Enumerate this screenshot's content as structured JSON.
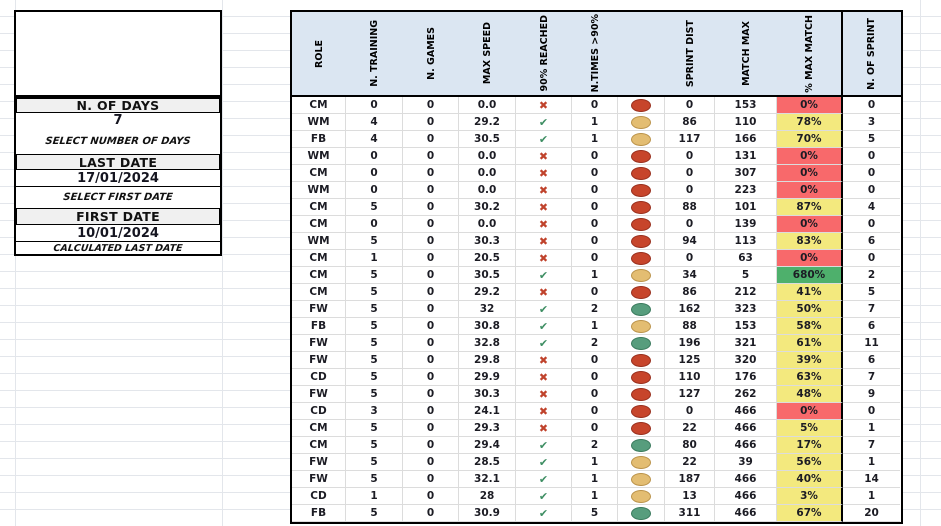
{
  "left_panel": {
    "n_of_days_label": "N. OF DAYS",
    "n_of_days_value": "7",
    "n_of_days_hint": "SELECT NUMBER OF DAYS",
    "last_date_label": "LAST DATE",
    "last_date_value": "17/01/2024",
    "last_date_hint": "SELECT FIRST DATE",
    "first_date_label": "FIRST DATE",
    "first_date_value": "10/01/2024",
    "first_date_hint": "CALCULATED LAST DATE"
  },
  "table": {
    "columns": [
      "ROLE",
      "N. TRAINING",
      "N. GAMES",
      "MAX SPEED",
      "90% REACHED",
      "N.TIMES >90%",
      "",
      "SPRINT DIST",
      "MATCH MAX",
      "% MAX MATCH",
      "N. OF SPRINT"
    ],
    "glyphs": {
      "yes": "✔",
      "no": "✖"
    },
    "rows": [
      {
        "role": "CM",
        "n_training": "0",
        "n_games": "0",
        "max_speed": "0.0",
        "reached_90": "no",
        "n_times_90": "0",
        "status": "red",
        "sprint_dist": "0",
        "match_max": "153",
        "pct": "0%",
        "pct_level": "red",
        "n_of_sprint": "0"
      },
      {
        "role": "WM",
        "n_training": "4",
        "n_games": "0",
        "max_speed": "29.2",
        "reached_90": "yes",
        "n_times_90": "1",
        "status": "yellow",
        "sprint_dist": "86",
        "match_max": "110",
        "pct": "78%",
        "pct_level": "yellow",
        "n_of_sprint": "3"
      },
      {
        "role": "FB",
        "n_training": "4",
        "n_games": "0",
        "max_speed": "30.5",
        "reached_90": "yes",
        "n_times_90": "1",
        "status": "yellow",
        "sprint_dist": "117",
        "match_max": "166",
        "pct": "70%",
        "pct_level": "yellow",
        "n_of_sprint": "5"
      },
      {
        "role": "WM",
        "n_training": "0",
        "n_games": "0",
        "max_speed": "0.0",
        "reached_90": "no",
        "n_times_90": "0",
        "status": "red",
        "sprint_dist": "0",
        "match_max": "131",
        "pct": "0%",
        "pct_level": "red",
        "n_of_sprint": "0"
      },
      {
        "role": "CM",
        "n_training": "0",
        "n_games": "0",
        "max_speed": "0.0",
        "reached_90": "no",
        "n_times_90": "0",
        "status": "red",
        "sprint_dist": "0",
        "match_max": "307",
        "pct": "0%",
        "pct_level": "red",
        "n_of_sprint": "0"
      },
      {
        "role": "WM",
        "n_training": "0",
        "n_games": "0",
        "max_speed": "0.0",
        "reached_90": "no",
        "n_times_90": "0",
        "status": "red",
        "sprint_dist": "0",
        "match_max": "223",
        "pct": "0%",
        "pct_level": "red",
        "n_of_sprint": "0"
      },
      {
        "role": "CM",
        "n_training": "5",
        "n_games": "0",
        "max_speed": "30.2",
        "reached_90": "no",
        "n_times_90": "0",
        "status": "red",
        "sprint_dist": "88",
        "match_max": "101",
        "pct": "87%",
        "pct_level": "yellow",
        "n_of_sprint": "4"
      },
      {
        "role": "CM",
        "n_training": "0",
        "n_games": "0",
        "max_speed": "0.0",
        "reached_90": "no",
        "n_times_90": "0",
        "status": "red",
        "sprint_dist": "0",
        "match_max": "139",
        "pct": "0%",
        "pct_level": "red",
        "n_of_sprint": "0"
      },
      {
        "role": "WM",
        "n_training": "5",
        "n_games": "0",
        "max_speed": "30.3",
        "reached_90": "no",
        "n_times_90": "0",
        "status": "red",
        "sprint_dist": "94",
        "match_max": "113",
        "pct": "83%",
        "pct_level": "yellow",
        "n_of_sprint": "6"
      },
      {
        "role": "CM",
        "n_training": "1",
        "n_games": "0",
        "max_speed": "20.5",
        "reached_90": "no",
        "n_times_90": "0",
        "status": "red",
        "sprint_dist": "0",
        "match_max": "63",
        "pct": "0%",
        "pct_level": "red",
        "n_of_sprint": "0"
      },
      {
        "role": "CM",
        "n_training": "5",
        "n_games": "0",
        "max_speed": "30.5",
        "reached_90": "yes",
        "n_times_90": "1",
        "status": "yellow",
        "sprint_dist": "34",
        "match_max": "5",
        "pct": "680%",
        "pct_level": "green",
        "n_of_sprint": "2"
      },
      {
        "role": "CM",
        "n_training": "5",
        "n_games": "0",
        "max_speed": "29.2",
        "reached_90": "no",
        "n_times_90": "0",
        "status": "red",
        "sprint_dist": "86",
        "match_max": "212",
        "pct": "41%",
        "pct_level": "yellow",
        "n_of_sprint": "5"
      },
      {
        "role": "FW",
        "n_training": "5",
        "n_games": "0",
        "max_speed": "32",
        "reached_90": "yes",
        "n_times_90": "2",
        "status": "green",
        "sprint_dist": "162",
        "match_max": "323",
        "pct": "50%",
        "pct_level": "yellow",
        "n_of_sprint": "7"
      },
      {
        "role": "FB",
        "n_training": "5",
        "n_games": "0",
        "max_speed": "30.8",
        "reached_90": "yes",
        "n_times_90": "1",
        "status": "yellow",
        "sprint_dist": "88",
        "match_max": "153",
        "pct": "58%",
        "pct_level": "yellow",
        "n_of_sprint": "6"
      },
      {
        "role": "FW",
        "n_training": "5",
        "n_games": "0",
        "max_speed": "32.8",
        "reached_90": "yes",
        "n_times_90": "2",
        "status": "green",
        "sprint_dist": "196",
        "match_max": "321",
        "pct": "61%",
        "pct_level": "yellow",
        "n_of_sprint": "11"
      },
      {
        "role": "FW",
        "n_training": "5",
        "n_games": "0",
        "max_speed": "29.8",
        "reached_90": "no",
        "n_times_90": "0",
        "status": "red",
        "sprint_dist": "125",
        "match_max": "320",
        "pct": "39%",
        "pct_level": "yellow",
        "n_of_sprint": "6"
      },
      {
        "role": "CD",
        "n_training": "5",
        "n_games": "0",
        "max_speed": "29.9",
        "reached_90": "no",
        "n_times_90": "0",
        "status": "red",
        "sprint_dist": "110",
        "match_max": "176",
        "pct": "63%",
        "pct_level": "yellow",
        "n_of_sprint": "7"
      },
      {
        "role": "FW",
        "n_training": "5",
        "n_games": "0",
        "max_speed": "30.3",
        "reached_90": "no",
        "n_times_90": "0",
        "status": "red",
        "sprint_dist": "127",
        "match_max": "262",
        "pct": "48%",
        "pct_level": "yellow",
        "n_of_sprint": "9"
      },
      {
        "role": "CD",
        "n_training": "3",
        "n_games": "0",
        "max_speed": "24.1",
        "reached_90": "no",
        "n_times_90": "0",
        "status": "red",
        "sprint_dist": "0",
        "match_max": "466",
        "pct": "0%",
        "pct_level": "red",
        "n_of_sprint": "0"
      },
      {
        "role": "CM",
        "n_training": "5",
        "n_games": "0",
        "max_speed": "29.3",
        "reached_90": "no",
        "n_times_90": "0",
        "status": "red",
        "sprint_dist": "22",
        "match_max": "466",
        "pct": "5%",
        "pct_level": "yellow",
        "n_of_sprint": "1"
      },
      {
        "role": "CM",
        "n_training": "5",
        "n_games": "0",
        "max_speed": "29.4",
        "reached_90": "yes",
        "n_times_90": "2",
        "status": "green",
        "sprint_dist": "80",
        "match_max": "466",
        "pct": "17%",
        "pct_level": "yellow",
        "n_of_sprint": "7"
      },
      {
        "role": "FW",
        "n_training": "5",
        "n_games": "0",
        "max_speed": "28.5",
        "reached_90": "yes",
        "n_times_90": "1",
        "status": "yellow",
        "sprint_dist": "22",
        "match_max": "39",
        "pct": "56%",
        "pct_level": "yellow",
        "n_of_sprint": "1"
      },
      {
        "role": "FW",
        "n_training": "5",
        "n_games": "0",
        "max_speed": "32.1",
        "reached_90": "yes",
        "n_times_90": "1",
        "status": "yellow",
        "sprint_dist": "187",
        "match_max": "466",
        "pct": "40%",
        "pct_level": "yellow",
        "n_of_sprint": "14"
      },
      {
        "role": "CD",
        "n_training": "1",
        "n_games": "0",
        "max_speed": "28",
        "reached_90": "yes",
        "n_times_90": "1",
        "status": "yellow",
        "sprint_dist": "13",
        "match_max": "466",
        "pct": "3%",
        "pct_level": "yellow",
        "n_of_sprint": "1"
      },
      {
        "role": "FB",
        "n_training": "5",
        "n_games": "0",
        "max_speed": "30.9",
        "reached_90": "yes",
        "n_times_90": "5",
        "status": "green",
        "sprint_dist": "311",
        "match_max": "466",
        "pct": "67%",
        "pct_level": "yellow",
        "n_of_sprint": "20"
      }
    ]
  },
  "colors": {
    "header_bg": "#dbe6f2",
    "pct_red": "#f8696b",
    "pct_yellow": "#f3e97e",
    "pct_green": "#4eb06c",
    "circle_red": "#c7452b",
    "circle_yellow": "#e3bd72",
    "circle_green": "#579d7d",
    "check_green": "#3e8e63",
    "cross_red": "#c0432c"
  }
}
